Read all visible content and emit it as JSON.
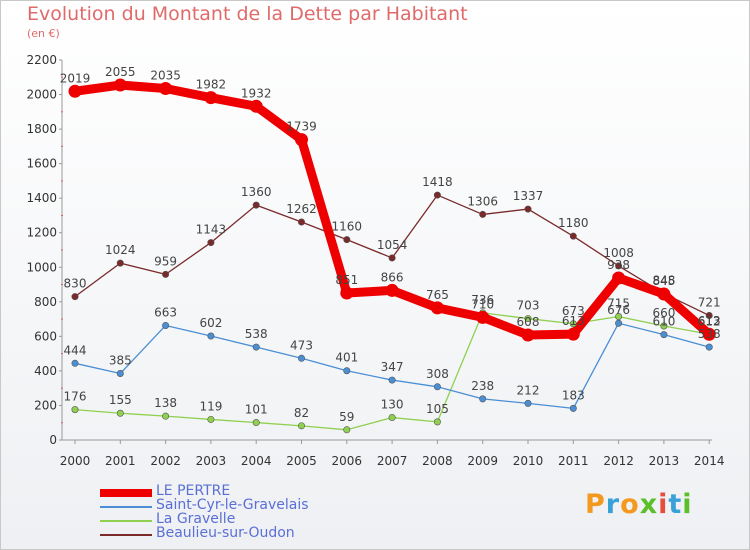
{
  "title": "Evolution du Montant de la Dette par Habitant",
  "subtitle": "(en €)",
  "logo": {
    "text": "Proxiti",
    "letters": [
      "P",
      "r",
      "o",
      "x",
      "i",
      "t",
      "i"
    ],
    "colors": [
      "#f39a1e",
      "#3aa0d8",
      "#f39a1e",
      "#5bbf2a",
      "#e84c3d",
      "#3aa0d8",
      "#5bbf2a"
    ]
  },
  "chart_data": {
    "type": "line",
    "title": "Evolution du Montant de la Dette par Habitant",
    "ylabel": "(en €)",
    "xlabel": "",
    "x": [
      "2000",
      "2001",
      "2002",
      "2003",
      "2004",
      "2005",
      "2006",
      "2007",
      "2008",
      "2009",
      "2010",
      "2011",
      "2012",
      "2013",
      "2014"
    ],
    "ylim": [
      0,
      2200
    ],
    "yticks": [
      "0",
      "200",
      "400",
      "600",
      "800",
      "1000",
      "1200",
      "1400",
      "1600",
      "1800",
      "2000",
      "2200"
    ],
    "grid": false,
    "legend_position": "bottom-left",
    "series": [
      {
        "name": "LE PERTRE",
        "color": "#ee0000",
        "values": [
          2019,
          2055,
          2035,
          1982,
          1932,
          1739,
          851,
          866,
          765,
          710,
          608,
          613,
          938,
          845,
          612
        ],
        "labels": [
          "2019",
          "2055",
          "2035",
          "1982",
          "1932",
          "1739",
          "851",
          "866",
          "765",
          "710",
          "608",
          "613",
          "938",
          "845",
          "612"
        ]
      },
      {
        "name": "Saint-Cyr-le-Gravelais",
        "color": "#4a8fd4",
        "values": [
          444,
          385,
          663,
          602,
          538,
          473,
          401,
          347,
          308,
          238,
          212,
          183,
          676,
          610,
          538
        ],
        "labels": [
          "444",
          "385",
          "663",
          "602",
          "538",
          "473",
          "401",
          "347",
          "308",
          "238",
          "212",
          "183",
          "676",
          "610",
          "538"
        ]
      },
      {
        "name": "La Gravelle",
        "color": "#90d050",
        "values": [
          176,
          155,
          138,
          119,
          101,
          82,
          59,
          130,
          105,
          736,
          703,
          673,
          715,
          660,
          613
        ],
        "labels": [
          "176",
          "155",
          "138",
          "119",
          "101",
          "82",
          "59",
          "130",
          "105",
          "736",
          "703",
          "673",
          "715",
          "660",
          "613"
        ]
      },
      {
        "name": "Beaulieu-sur-Oudon",
        "color": "#7a2a2a",
        "values": [
          830,
          1024,
          959,
          1143,
          1360,
          1262,
          1160,
          1054,
          1418,
          1306,
          1337,
          1180,
          1008,
          848,
          721
        ],
        "labels": [
          "830",
          "1024",
          "959",
          "1143",
          "1360",
          "1262",
          "1160",
          "1054",
          "1418",
          "1306",
          "1337",
          "1180",
          "1008",
          "848",
          "721"
        ]
      }
    ]
  }
}
